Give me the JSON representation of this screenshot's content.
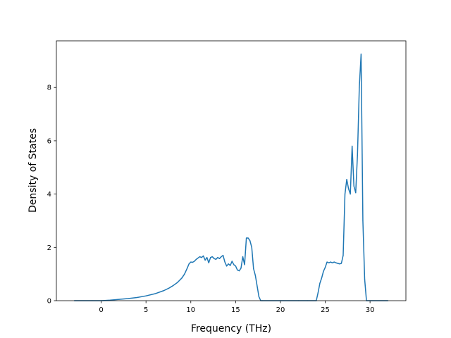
{
  "chart_data": {
    "type": "line",
    "title": "",
    "xlabel": "Frequency (THz)",
    "ylabel": "Density of States",
    "xlim": [
      -5.0,
      34.0
    ],
    "ylim": [
      0,
      9.75
    ],
    "xticks": [
      0,
      5,
      10,
      15,
      20,
      25,
      30
    ],
    "yticks": [
      0,
      2,
      4,
      6,
      8
    ],
    "grid": false,
    "legend": "none",
    "color": "#1f77b4",
    "series": [
      {
        "x": [
          -3.0,
          -1.0,
          0.0,
          1.0,
          2.0,
          3.0,
          4.0,
          5.0,
          6.0,
          7.0,
          7.5,
          8.0,
          8.5,
          9.0,
          9.3,
          9.6,
          9.8,
          10.0,
          10.2,
          10.4,
          10.6,
          10.8,
          11.0,
          11.2,
          11.4,
          11.6,
          11.8,
          12.0,
          12.2,
          12.4,
          12.6,
          12.8,
          13.0,
          13.2,
          13.4,
          13.6,
          13.8,
          14.0,
          14.2,
          14.4,
          14.6,
          14.8,
          15.0,
          15.2,
          15.4,
          15.6,
          15.8,
          16.0,
          16.2,
          16.4,
          16.6,
          16.8,
          17.0,
          17.2,
          17.4,
          17.6,
          17.8,
          18.0,
          20.0,
          22.0,
          23.0,
          24.0,
          24.2,
          24.4,
          24.6,
          24.8,
          25.0,
          25.2,
          25.4,
          25.6,
          25.8,
          26.0,
          26.2,
          26.4,
          26.6,
          26.8,
          27.0,
          27.2,
          27.4,
          27.6,
          27.8,
          28.0,
          28.2,
          28.4,
          28.6,
          28.8,
          29.0,
          29.2,
          29.4,
          29.6,
          32.0
        ],
        "y": [
          0.0,
          0.0,
          0.0,
          0.02,
          0.05,
          0.08,
          0.12,
          0.18,
          0.26,
          0.38,
          0.46,
          0.56,
          0.68,
          0.85,
          1.0,
          1.22,
          1.38,
          1.45,
          1.44,
          1.48,
          1.55,
          1.6,
          1.65,
          1.62,
          1.68,
          1.52,
          1.62,
          1.42,
          1.62,
          1.65,
          1.58,
          1.55,
          1.62,
          1.58,
          1.65,
          1.7,
          1.45,
          1.3,
          1.38,
          1.32,
          1.48,
          1.35,
          1.3,
          1.15,
          1.12,
          1.22,
          1.65,
          1.35,
          2.35,
          2.35,
          2.25,
          2.0,
          1.2,
          0.95,
          0.55,
          0.15,
          0.0,
          0.0,
          0.0,
          0.0,
          0.0,
          0.0,
          0.3,
          0.65,
          0.85,
          1.1,
          1.25,
          1.45,
          1.42,
          1.45,
          1.42,
          1.45,
          1.42,
          1.4,
          1.38,
          1.4,
          1.7,
          4.0,
          4.55,
          4.2,
          4.0,
          5.8,
          4.3,
          4.05,
          5.5,
          8.0,
          9.25,
          3.0,
          0.8,
          0.0,
          0.0
        ]
      }
    ]
  }
}
